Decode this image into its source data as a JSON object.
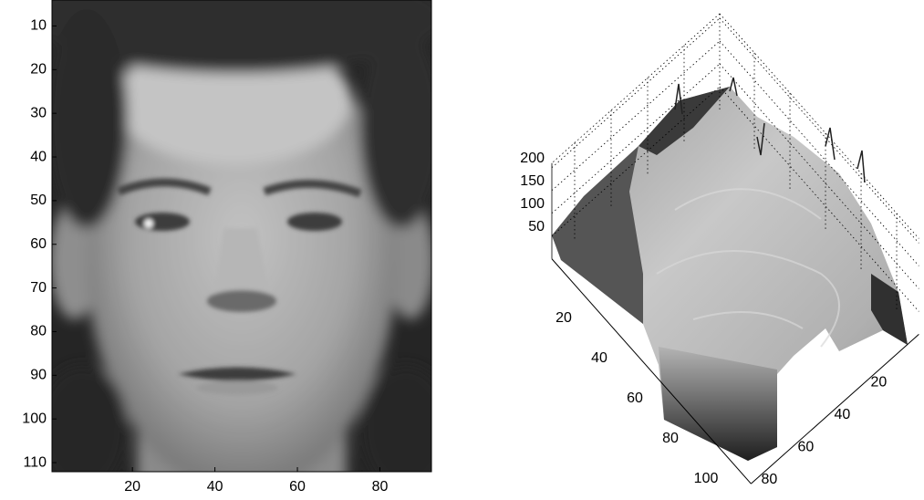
{
  "chart_data": [
    {
      "type": "image",
      "xlim": [
        0.5,
        92.5
      ],
      "ylim": [
        0.5,
        112.5
      ],
      "xticks": [
        20,
        40,
        60,
        80
      ],
      "yticks": [
        10,
        20,
        30,
        40,
        50,
        60,
        70,
        80,
        90,
        100,
        110
      ]
    },
    {
      "type": "surface",
      "xlim": [
        0.5,
        92.5
      ],
      "ylim": [
        0.5,
        112.5
      ],
      "zlim": [
        0,
        210
      ],
      "xticks": [
        20,
        40,
        60,
        80
      ],
      "yticks": [
        20,
        40,
        60,
        80,
        100
      ],
      "zticks": [
        50,
        100,
        150,
        200
      ]
    }
  ]
}
